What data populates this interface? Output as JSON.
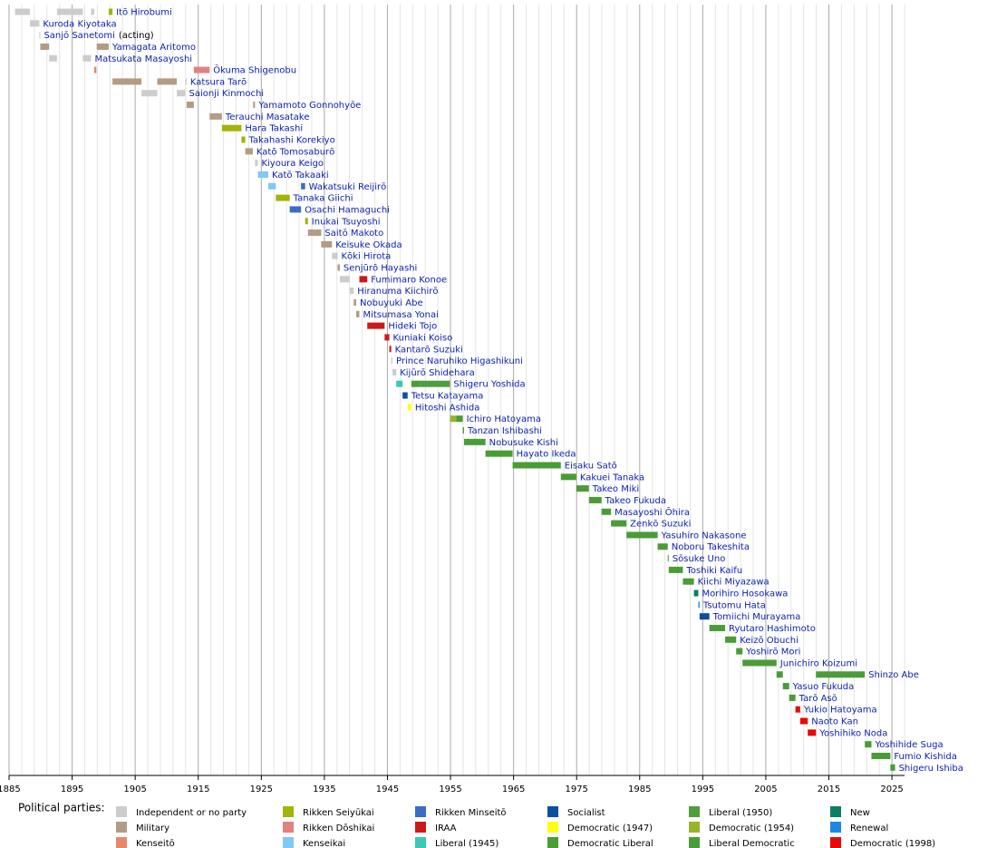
{
  "chart_data": {
    "type": "timeline",
    "xlim": [
      1885,
      2027
    ],
    "xticks": [
      1885,
      1895,
      1905,
      1915,
      1925,
      1935,
      1945,
      1955,
      1965,
      1975,
      1985,
      1995,
      2005,
      2015,
      2025
    ],
    "xminorticks": [
      1887,
      1889,
      1891,
      1893,
      1897,
      1899,
      1901,
      1903,
      1907,
      1909,
      1911,
      1913,
      1917,
      1919,
      1921,
      1923,
      1927,
      1929,
      1931,
      1933,
      1937,
      1939,
      1941,
      1943,
      1947,
      1949,
      1951,
      1953,
      1957,
      1959,
      1961,
      1963,
      1967,
      1969,
      1971,
      1973,
      1977,
      1979,
      1981,
      1983,
      1987,
      1989,
      1991,
      1993,
      1997,
      1999,
      2001,
      2003,
      2007,
      2009,
      2011,
      2013,
      2017,
      2019,
      2021,
      2023,
      2027
    ],
    "grid": true,
    "legend_title": "Political parties:",
    "parties": [
      {
        "name": "Independent or no party",
        "color": "#cccccc"
      },
      {
        "name": "Military",
        "color": "#b39b84"
      },
      {
        "name": "Kenseitō",
        "color": "#e8866b"
      },
      {
        "name": "Rikken Seiyūkai",
        "color": "#a3b40a"
      },
      {
        "name": "Rikken Dōshikai",
        "color": "#e38080"
      },
      {
        "name": "Kenseikai",
        "color": "#80c8f5"
      },
      {
        "name": "Rikken Minseitō",
        "color": "#3a6ec4"
      },
      {
        "name": "IRAA",
        "color": "#cc1a1a"
      },
      {
        "name": "Liberal (1945)",
        "color": "#3cc8b4"
      },
      {
        "name": "Socialist",
        "color": "#0a4fa0"
      },
      {
        "name": "Democratic (1947)",
        "color": "#ffff10"
      },
      {
        "name": "Democratic Liberal",
        "color": "#4a9e33"
      },
      {
        "name": "Liberal (1950)",
        "color": "#4e9e3e"
      },
      {
        "name": "Democratic (1954)",
        "color": "#98b428"
      },
      {
        "name": "Liberal Democratic",
        "color": "#4a9c38"
      },
      {
        "name": "New",
        "color": "#0a8060"
      },
      {
        "name": "Renewal",
        "color": "#1e88e0"
      },
      {
        "name": "Democratic (1998)",
        "color": "#e60a0a"
      }
    ],
    "rows": [
      {
        "name": "Itō Hirobumi",
        "terms": [
          {
            "start": 1885.95,
            "end": 1888.3,
            "party": "Independent or no party"
          },
          {
            "start": 1892.6,
            "end": 1896.7,
            "party": "Independent or no party"
          },
          {
            "start": 1898.0,
            "end": 1898.5,
            "party": "Independent or no party"
          },
          {
            "start": 1900.8,
            "end": 1901.4,
            "party": "Rikken Seiyūkai"
          }
        ]
      },
      {
        "name": "Kuroda Kiyotaka",
        "terms": [
          {
            "start": 1888.3,
            "end": 1889.8,
            "party": "Independent or no party"
          }
        ]
      },
      {
        "name": "Sanjō Sanetomi",
        "note": "(acting)",
        "terms": [
          {
            "start": 1889.8,
            "end": 1889.95,
            "party": "Independent or no party"
          }
        ]
      },
      {
        "name": "Yamagata Aritomo",
        "terms": [
          {
            "start": 1889.95,
            "end": 1891.35,
            "party": "Military"
          },
          {
            "start": 1898.9,
            "end": 1900.8,
            "party": "Military"
          }
        ]
      },
      {
        "name": "Matsukata Masayoshi",
        "terms": [
          {
            "start": 1891.35,
            "end": 1892.6,
            "party": "Independent or no party"
          },
          {
            "start": 1896.7,
            "end": 1898.0,
            "party": "Independent or no party"
          }
        ]
      },
      {
        "name": "Ōkuma Shigenobu",
        "terms": [
          {
            "start": 1898.5,
            "end": 1898.85,
            "party": "Kenseitō"
          },
          {
            "start": 1914.3,
            "end": 1916.8,
            "party": "Rikken Dōshikai"
          }
        ]
      },
      {
        "name": "Katsura Tarō",
        "terms": [
          {
            "start": 1901.4,
            "end": 1906.0,
            "party": "Military"
          },
          {
            "start": 1908.5,
            "end": 1911.6,
            "party": "Military"
          },
          {
            "start": 1912.95,
            "end": 1913.15,
            "party": "Independent or no party"
          }
        ]
      },
      {
        "name": "Saionji Kinmochi",
        "terms": [
          {
            "start": 1906.0,
            "end": 1908.5,
            "party": "Independent or no party"
          },
          {
            "start": 1911.6,
            "end": 1912.95,
            "party": "Independent or no party"
          }
        ]
      },
      {
        "name": "Yamamoto Gonnohyōe",
        "terms": [
          {
            "start": 1913.15,
            "end": 1914.3,
            "party": "Military"
          },
          {
            "start": 1923.7,
            "end": 1924.0,
            "party": "Military"
          }
        ]
      },
      {
        "name": "Terauchi Masatake",
        "terms": [
          {
            "start": 1916.8,
            "end": 1918.75,
            "party": "Military"
          }
        ]
      },
      {
        "name": "Hara Takashi",
        "terms": [
          {
            "start": 1918.75,
            "end": 1921.85,
            "party": "Rikken Seiyūkai"
          }
        ]
      },
      {
        "name": "Takahashi Korekiyo",
        "terms": [
          {
            "start": 1921.85,
            "end": 1922.45,
            "party": "Rikken Seiyūkai"
          }
        ]
      },
      {
        "name": "Katō Tomosaburō",
        "terms": [
          {
            "start": 1922.45,
            "end": 1923.65,
            "party": "Military"
          }
        ]
      },
      {
        "name": "Kiyoura Keigo",
        "terms": [
          {
            "start": 1924.0,
            "end": 1924.45,
            "party": "Independent or no party"
          }
        ]
      },
      {
        "name": "Katō Takaaki",
        "terms": [
          {
            "start": 1924.45,
            "end": 1926.1,
            "party": "Kenseikai"
          }
        ]
      },
      {
        "name": "Wakatsuki Reijirō",
        "terms": [
          {
            "start": 1926.1,
            "end": 1927.3,
            "party": "Kenseikai"
          },
          {
            "start": 1931.3,
            "end": 1931.95,
            "party": "Rikken Minseitō"
          }
        ]
      },
      {
        "name": "Tanaka Giichi",
        "terms": [
          {
            "start": 1927.3,
            "end": 1929.5,
            "party": "Rikken Seiyūkai"
          }
        ]
      },
      {
        "name": "Osachi Hamaguchi",
        "terms": [
          {
            "start": 1929.5,
            "end": 1931.3,
            "party": "Rikken Minseitō"
          }
        ]
      },
      {
        "name": "Inukai Tsuyoshi",
        "terms": [
          {
            "start": 1931.95,
            "end": 1932.4,
            "party": "Rikken Seiyūkai"
          }
        ]
      },
      {
        "name": "Saitō Makoto",
        "terms": [
          {
            "start": 1932.4,
            "end": 1934.5,
            "party": "Military"
          }
        ]
      },
      {
        "name": "Keisuke Okada",
        "terms": [
          {
            "start": 1934.5,
            "end": 1936.2,
            "party": "Military"
          }
        ]
      },
      {
        "name": "Kōki Hirota",
        "terms": [
          {
            "start": 1936.2,
            "end": 1937.1,
            "party": "Independent or no party"
          }
        ]
      },
      {
        "name": "Senjūrō Hayashi",
        "terms": [
          {
            "start": 1937.1,
            "end": 1937.45,
            "party": "Military"
          }
        ]
      },
      {
        "name": "Fumimaro Konoe",
        "terms": [
          {
            "start": 1937.45,
            "end": 1939.0,
            "party": "Independent or no party"
          },
          {
            "start": 1940.55,
            "end": 1941.8,
            "party": "IRAA"
          }
        ]
      },
      {
        "name": "Hiranuma Kiichirō",
        "terms": [
          {
            "start": 1939.0,
            "end": 1939.65,
            "party": "Independent or no party"
          }
        ]
      },
      {
        "name": "Nobuyuki Abe",
        "terms": [
          {
            "start": 1939.65,
            "end": 1940.05,
            "party": "Military"
          }
        ]
      },
      {
        "name": "Mitsumasa Yonai",
        "terms": [
          {
            "start": 1940.05,
            "end": 1940.55,
            "party": "Military"
          }
        ]
      },
      {
        "name": "Hideki Tojo",
        "terms": [
          {
            "start": 1941.8,
            "end": 1944.55,
            "party": "IRAA"
          }
        ]
      },
      {
        "name": "Kuniaki Koiso",
        "terms": [
          {
            "start": 1944.55,
            "end": 1945.3,
            "party": "IRAA"
          }
        ]
      },
      {
        "name": "Kantarō Suzuki",
        "terms": [
          {
            "start": 1945.3,
            "end": 1945.6,
            "party": "IRAA"
          }
        ]
      },
      {
        "name": "Prince Naruhiko Higashikuni",
        "terms": [
          {
            "start": 1945.6,
            "end": 1945.8,
            "party": "Independent or no party"
          }
        ]
      },
      {
        "name": "Kijūrō Shidehara",
        "terms": [
          {
            "start": 1945.8,
            "end": 1946.4,
            "party": "Independent or no party"
          }
        ]
      },
      {
        "name": "Shigeru Yoshida",
        "terms": [
          {
            "start": 1946.4,
            "end": 1947.4,
            "party": "Liberal (1945)"
          },
          {
            "start": 1948.8,
            "end": 1950.2,
            "party": "Democratic Liberal"
          },
          {
            "start": 1950.2,
            "end": 1954.9,
            "party": "Liberal (1950)"
          }
        ]
      },
      {
        "name": "Tetsu Katayama",
        "terms": [
          {
            "start": 1947.4,
            "end": 1948.2,
            "party": "Socialist"
          }
        ]
      },
      {
        "name": "Hitoshi Ashida",
        "terms": [
          {
            "start": 1948.2,
            "end": 1948.8,
            "party": "Democratic (1947)"
          }
        ]
      },
      {
        "name": "Ichiro Hatoyama",
        "terms": [
          {
            "start": 1954.9,
            "end": 1955.9,
            "party": "Democratic (1954)"
          },
          {
            "start": 1955.9,
            "end": 1956.95,
            "party": "Liberal Democratic"
          }
        ]
      },
      {
        "name": "Tanzan Ishibashi",
        "terms": [
          {
            "start": 1956.95,
            "end": 1957.15,
            "party": "Liberal Democratic"
          }
        ]
      },
      {
        "name": "Nobusuke Kishi",
        "terms": [
          {
            "start": 1957.15,
            "end": 1960.55,
            "party": "Liberal Democratic"
          }
        ]
      },
      {
        "name": "Hayato Ikeda",
        "terms": [
          {
            "start": 1960.55,
            "end": 1964.85,
            "party": "Liberal Democratic"
          }
        ]
      },
      {
        "name": "Eisaku Satō",
        "terms": [
          {
            "start": 1964.85,
            "end": 1972.5,
            "party": "Liberal Democratic"
          }
        ]
      },
      {
        "name": "Kakuei Tanaka",
        "terms": [
          {
            "start": 1972.5,
            "end": 1974.95,
            "party": "Liberal Democratic"
          }
        ]
      },
      {
        "name": "Takeo Miki",
        "terms": [
          {
            "start": 1974.95,
            "end": 1976.95,
            "party": "Liberal Democratic"
          }
        ]
      },
      {
        "name": "Takeo Fukuda",
        "terms": [
          {
            "start": 1976.95,
            "end": 1978.95,
            "party": "Liberal Democratic"
          }
        ]
      },
      {
        "name": "Masayoshi Ōhira",
        "terms": [
          {
            "start": 1978.95,
            "end": 1980.45,
            "party": "Liberal Democratic"
          }
        ]
      },
      {
        "name": "Zenkō Suzuki",
        "terms": [
          {
            "start": 1980.45,
            "end": 1982.9,
            "party": "Liberal Democratic"
          }
        ]
      },
      {
        "name": "Yasuhiro Nakasone",
        "terms": [
          {
            "start": 1982.9,
            "end": 1987.85,
            "party": "Liberal Democratic"
          }
        ]
      },
      {
        "name": "Noboru Takeshita",
        "terms": [
          {
            "start": 1987.85,
            "end": 1989.45,
            "party": "Liberal Democratic"
          }
        ]
      },
      {
        "name": "Sōsuke Uno",
        "terms": [
          {
            "start": 1989.45,
            "end": 1989.6,
            "party": "Liberal Democratic"
          }
        ]
      },
      {
        "name": "Toshiki Kaifu",
        "terms": [
          {
            "start": 1989.6,
            "end": 1991.85,
            "party": "Liberal Democratic"
          }
        ]
      },
      {
        "name": "Kiichi Miyazawa",
        "terms": [
          {
            "start": 1991.85,
            "end": 1993.6,
            "party": "Liberal Democratic"
          }
        ]
      },
      {
        "name": "Morihiro Hosokawa",
        "terms": [
          {
            "start": 1993.6,
            "end": 1994.3,
            "party": "New"
          }
        ]
      },
      {
        "name": "Tsutomu Hata",
        "terms": [
          {
            "start": 1994.3,
            "end": 1994.5,
            "party": "Renewal"
          }
        ]
      },
      {
        "name": "Tomiichi Murayama",
        "terms": [
          {
            "start": 1994.5,
            "end": 1996.05,
            "party": "Socialist"
          }
        ]
      },
      {
        "name": "Ryutaro Hashimoto",
        "terms": [
          {
            "start": 1996.05,
            "end": 1998.55,
            "party": "Liberal Democratic"
          }
        ]
      },
      {
        "name": "Keizō Obuchi",
        "terms": [
          {
            "start": 1998.55,
            "end": 2000.3,
            "party": "Liberal Democratic"
          }
        ]
      },
      {
        "name": "Yoshirō Mori",
        "terms": [
          {
            "start": 2000.3,
            "end": 2001.3,
            "party": "Liberal Democratic"
          }
        ]
      },
      {
        "name": "Junichiro Koizumi",
        "terms": [
          {
            "start": 2001.3,
            "end": 2006.7,
            "party": "Liberal Democratic"
          }
        ]
      },
      {
        "name": "Shinzo Abe",
        "terms": [
          {
            "start": 2006.7,
            "end": 2007.7,
            "party": "Liberal Democratic"
          },
          {
            "start": 2012.95,
            "end": 2020.7,
            "party": "Liberal Democratic"
          }
        ]
      },
      {
        "name": "Yasuo Fukuda",
        "terms": [
          {
            "start": 2007.7,
            "end": 2008.7,
            "party": "Liberal Democratic"
          }
        ]
      },
      {
        "name": "Tarō Asō",
        "terms": [
          {
            "start": 2008.7,
            "end": 2009.7,
            "party": "Liberal Democratic"
          }
        ]
      },
      {
        "name": "Yukio Hatoyama",
        "terms": [
          {
            "start": 2009.7,
            "end": 2010.45,
            "party": "Democratic (1998)"
          }
        ]
      },
      {
        "name": "Naoto Kan",
        "terms": [
          {
            "start": 2010.45,
            "end": 2011.65,
            "party": "Democratic (1998)"
          }
        ]
      },
      {
        "name": "Yoshihiko Noda",
        "terms": [
          {
            "start": 2011.65,
            "end": 2012.95,
            "party": "Democratic (1998)"
          }
        ]
      },
      {
        "name": "Yoshihide Suga",
        "terms": [
          {
            "start": 2020.7,
            "end": 2021.75,
            "party": "Liberal Democratic"
          }
        ]
      },
      {
        "name": "Fumio Kishida",
        "terms": [
          {
            "start": 2021.75,
            "end": 2024.75,
            "party": "Liberal Democratic"
          }
        ]
      },
      {
        "name": "Shigeru Ishiba",
        "terms": [
          {
            "start": 2024.75,
            "end": 2025.5,
            "party": "Liberal Democratic"
          }
        ]
      }
    ]
  }
}
